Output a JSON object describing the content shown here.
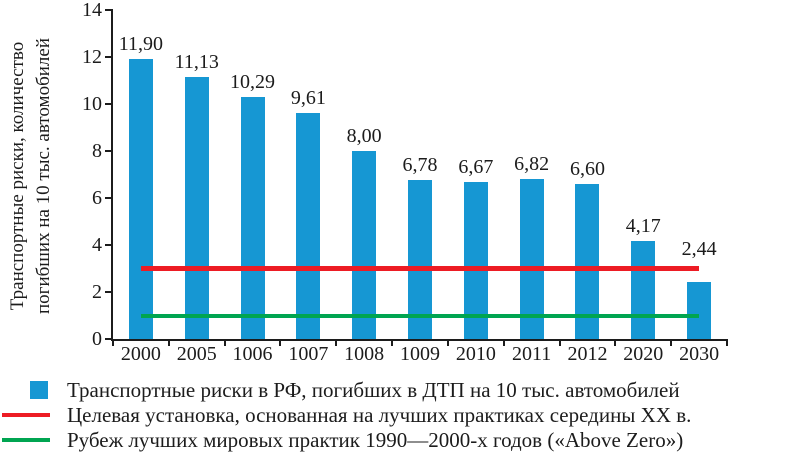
{
  "chart_data": {
    "type": "bar",
    "title": "",
    "ylabel_line1": "Транспортные риски, количество",
    "ylabel_line2": "погибших на 10 тыс. автомобилей",
    "xlabel": "",
    "categories": [
      "2000",
      "2005",
      "1006",
      "1007",
      "1008",
      "1009",
      "2010",
      "2011",
      "2012",
      "2020",
      "2030"
    ],
    "values": [
      11.9,
      11.13,
      10.29,
      9.61,
      8.0,
      6.78,
      6.67,
      6.82,
      6.6,
      4.17,
      2.44
    ],
    "value_labels": [
      "11,90",
      "11,13",
      "10,29",
      "9,61",
      "8,00",
      "6,78",
      "6,67",
      "6,82",
      "6,60",
      "4,17",
      "2,44"
    ],
    "ylim": [
      0,
      14
    ],
    "yticks": [
      0,
      2,
      4,
      6,
      8,
      10,
      12,
      14
    ],
    "ytick_labels": [
      "0",
      "2",
      "4",
      "6",
      "8",
      "10",
      "12",
      "14"
    ],
    "grid": "off",
    "bar_color": "#1697d3",
    "axis_color": "#1c1c1c",
    "reference_lines": [
      {
        "name": "target-line",
        "value": 3,
        "color": "#ed1c24",
        "thickness": 5
      },
      {
        "name": "above-zero-line",
        "value": 1,
        "color": "#00a551",
        "thickness": 4
      }
    ],
    "legend": {
      "position": "bottom",
      "items": [
        {
          "marker": "square",
          "color": "#1697d3",
          "label": "Транспортные риски в РФ, погибших в ДТП на 10 тыс. автомобилей"
        },
        {
          "marker": "line",
          "color": "#ed1c24",
          "label": "Целевая установка, основанная на лучших практиках середины XX в."
        },
        {
          "marker": "line",
          "color": "#00a551",
          "label": "Рубеж лучших мировых практик 1990—2000-х годов («Above Zero»)"
        }
      ]
    }
  }
}
